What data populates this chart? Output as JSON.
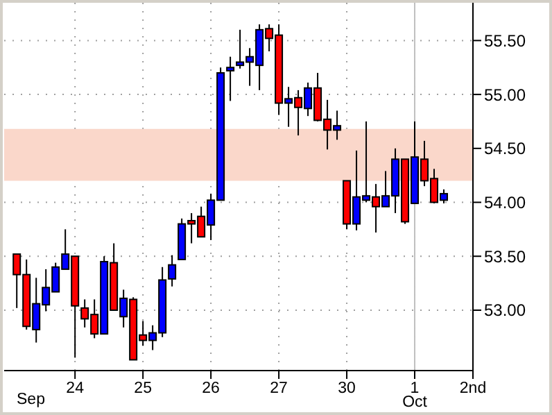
{
  "chart_data": {
    "type": "candlestick",
    "categories": [
      null,
      null,
      null,
      null,
      null,
      null,
      "24",
      null,
      null,
      null,
      null,
      null,
      null,
      "25",
      null,
      null,
      null,
      null,
      null,
      null,
      "26",
      null,
      null,
      null,
      null,
      null,
      null,
      "27",
      null,
      null,
      null,
      null,
      null,
      null,
      "30",
      null,
      null,
      null,
      null,
      null,
      null,
      "1\nOct",
      null,
      null,
      null,
      null,
      null,
      "2nd"
    ],
    "ohlc": [
      [
        53.52,
        53.52,
        53.02,
        53.33
      ],
      [
        53.33,
        53.47,
        52.82,
        52.85
      ],
      [
        52.82,
        53.3,
        52.7,
        53.06
      ],
      [
        53.05,
        53.38,
        52.99,
        53.21
      ],
      [
        53.17,
        53.44,
        53.17,
        53.4
      ],
      [
        53.38,
        53.75,
        53.38,
        53.52
      ],
      [
        53.5,
        53.5,
        52.56,
        53.04
      ],
      [
        53.02,
        53.1,
        52.84,
        52.92
      ],
      [
        52.96,
        53.1,
        52.74,
        52.78
      ],
      [
        52.78,
        53.5,
        52.78,
        53.45
      ],
      [
        53.44,
        53.62,
        53.0,
        53.0
      ],
      [
        52.94,
        53.19,
        52.84,
        53.11
      ],
      [
        53.1,
        53.12,
        52.54,
        52.54
      ],
      [
        52.77,
        52.9,
        52.67,
        52.72
      ],
      [
        52.72,
        52.86,
        52.63,
        52.79
      ],
      [
        52.79,
        53.4,
        52.75,
        53.28
      ],
      [
        53.29,
        53.51,
        53.22,
        53.42
      ],
      [
        53.47,
        53.85,
        53.47,
        53.8
      ],
      [
        53.83,
        53.9,
        53.62,
        53.8
      ],
      [
        53.87,
        53.96,
        53.68,
        53.68
      ],
      [
        53.79,
        54.08,
        53.65,
        54.02
      ],
      [
        54.02,
        55.25,
        54.02,
        55.2
      ],
      [
        55.22,
        55.35,
        54.94,
        55.25
      ],
      [
        55.27,
        55.6,
        55.24,
        55.3
      ],
      [
        55.3,
        55.43,
        55.08,
        55.35
      ],
      [
        55.27,
        55.65,
        55.04,
        55.6
      ],
      [
        55.61,
        55.65,
        55.4,
        55.52
      ],
      [
        55.55,
        55.65,
        54.81,
        54.92
      ],
      [
        54.92,
        55.07,
        54.7,
        54.96
      ],
      [
        54.97,
        55.04,
        54.62,
        54.88
      ],
      [
        54.87,
        55.11,
        54.8,
        55.06
      ],
      [
        55.06,
        55.2,
        54.75,
        54.76
      ],
      [
        54.77,
        54.95,
        54.49,
        54.67
      ],
      [
        54.67,
        54.85,
        54.58,
        54.71
      ],
      [
        54.2,
        54.2,
        53.75,
        53.8
      ],
      [
        53.8,
        54.48,
        53.74,
        54.05
      ],
      [
        54.02,
        54.75,
        54.0,
        54.06
      ],
      [
        54.05,
        54.17,
        53.72,
        53.96
      ],
      [
        53.96,
        54.29,
        53.96,
        54.06
      ],
      [
        54.06,
        54.5,
        53.9,
        54.4
      ],
      [
        54.4,
        54.4,
        53.8,
        53.82
      ],
      [
        53.99,
        54.75,
        53.99,
        54.42
      ],
      [
        54.4,
        54.57,
        54.15,
        54.2
      ],
      [
        54.22,
        54.31,
        53.99,
        54.0
      ],
      [
        54.02,
        54.12,
        53.99,
        54.08
      ],
      null,
      null,
      null
    ],
    "colors": [
      "#ff0000",
      "#ff0000",
      "#0000ff",
      "#0000ff",
      "#0000ff",
      "#0000ff",
      "#ff0000",
      "#ff0000",
      "#ff0000",
      "#0000ff",
      "#ff0000",
      "#0000ff",
      "#ff0000",
      "#ff0000",
      "#0000ff",
      "#0000ff",
      "#0000ff",
      "#0000ff",
      "#ff0000",
      "#ff0000",
      "#0000ff",
      "#0000ff",
      "#0000ff",
      "#0000ff",
      "#0000ff",
      "#0000ff",
      "#ff0000",
      "#ff0000",
      "#0000ff",
      "#ff0000",
      "#0000ff",
      "#ff0000",
      "#ff0000",
      "#0000ff",
      "#ff0000",
      "#0000ff",
      "#0000ff",
      "#ff0000",
      "#0000ff",
      "#0000ff",
      "#ff0000",
      "#0000ff",
      "#ff0000",
      "#ff0000",
      "#0000ff",
      null,
      null,
      null
    ],
    "ylim": [
      52.44,
      55.85
    ],
    "yticks": [
      {
        "value": 53,
        "label": "53.00"
      },
      {
        "value": 53.5,
        "label": "53.50"
      },
      {
        "value": 54,
        "label": "54.00"
      },
      {
        "value": 54.5,
        "label": "54.50"
      },
      {
        "value": 55,
        "label": "55.00"
      },
      {
        "value": 55.5,
        "label": "55.50"
      }
    ],
    "grid": true,
    "bands": [
      {
        "axis": "y",
        "from": 54.2,
        "to": 54.68,
        "color": "#fad7ca"
      }
    ],
    "ref_lines": [
      {
        "axis": "x",
        "value": "1\nOct",
        "color": "#c0c0c0"
      }
    ],
    "annotations": [
      "Sep"
    ]
  }
}
